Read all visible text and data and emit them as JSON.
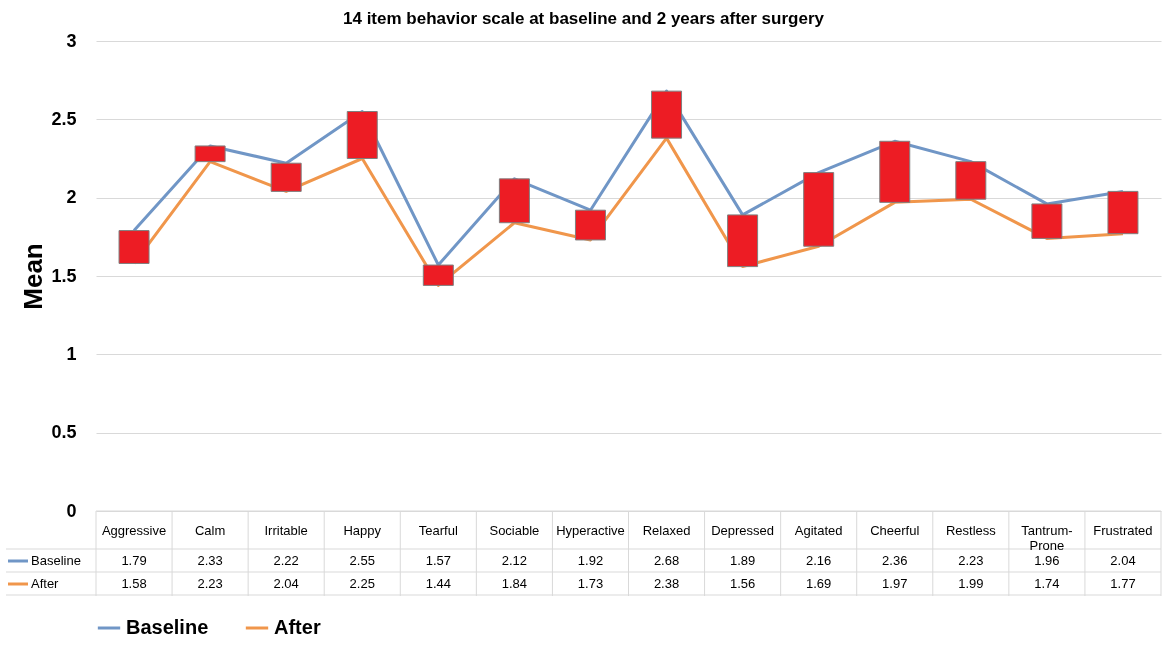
{
  "chart_data": {
    "type": "line",
    "title": "14 item behavior scale at baseline and 2 years after surgery",
    "ylabel": "Mean",
    "categories": [
      "Aggressive",
      "Calm",
      "Irritable",
      "Happy",
      "Tearful",
      "Sociable",
      "Hyperactive",
      "Relaxed",
      "Depressed",
      "Agitated",
      "Cheerful",
      "Restless",
      "Tantrum-Prone",
      "Frustrated"
    ],
    "series": [
      {
        "name": "Baseline",
        "color": "#7096c6",
        "values": [
          1.79,
          2.33,
          2.22,
          2.55,
          1.57,
          2.12,
          1.92,
          2.68,
          1.89,
          2.16,
          2.36,
          2.23,
          1.96,
          2.04
        ],
        "value_labels": [
          "1.79",
          "2.33",
          "2.22",
          "2.55",
          "1.57",
          "2.12",
          "1.92",
          "2.68",
          "1.89",
          "2.16",
          "2.36",
          "2.23",
          "1.96",
          "2.04"
        ]
      },
      {
        "name": "After",
        "color": "#f0964b",
        "values": [
          1.58,
          2.23,
          2.04,
          2.25,
          1.44,
          1.84,
          1.73,
          2.38,
          1.56,
          1.69,
          1.97,
          1.99,
          1.74,
          1.77
        ],
        "value_labels": [
          "1.58",
          "2.23",
          "2.04",
          "2.25",
          "1.44",
          "1.84",
          "1.73",
          "2.38",
          "1.56",
          "1.69",
          "1.97",
          "1.99",
          "1.74",
          "1.77"
        ]
      },
      {
        "type": "bar",
        "color": "#ed1c24",
        "base": [
          1.58,
          2.23,
          2.04,
          2.25,
          1.44,
          1.84,
          1.73,
          2.38,
          1.56,
          1.69,
          1.97,
          1.99,
          1.74,
          1.77
        ],
        "values": [
          0.21,
          0.1,
          0.18,
          0.3,
          0.13,
          0.28,
          0.19,
          0.3,
          0.33,
          0.47,
          0.39,
          0.24,
          0.22,
          0.27
        ]
      }
    ],
    "ylim": [
      0,
      3
    ],
    "yticks": [
      0,
      0.5,
      1,
      1.5,
      2,
      2.5,
      3
    ],
    "grid": "y",
    "legend": "bottom"
  }
}
